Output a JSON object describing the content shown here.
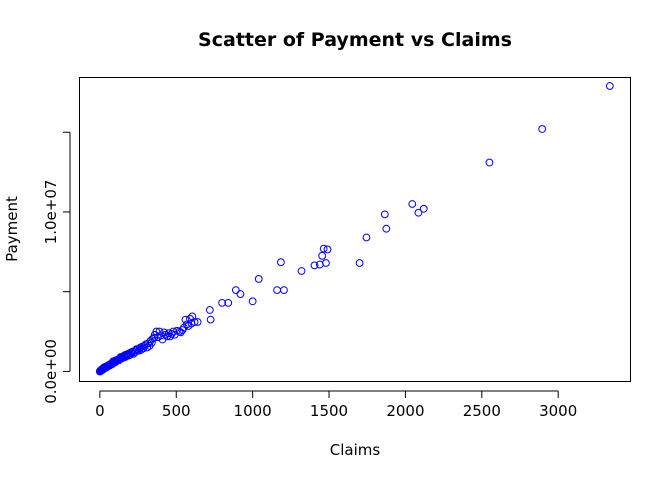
{
  "chart_data": {
    "type": "scatter",
    "title": "Scatter of Payment vs Claims",
    "xlabel": "Claims",
    "ylabel": "Payment",
    "xlim": [
      -130,
      3470
    ],
    "ylim": [
      -600000,
      18400000
    ],
    "x_ticks": [
      0,
      500,
      1000,
      1500,
      2000,
      2500,
      3000
    ],
    "x_tick_labels": [
      "0",
      "500",
      "1000",
      "1500",
      "2000",
      "2500",
      "3000"
    ],
    "y_ticks": [
      0,
      5000000,
      10000000,
      15000000
    ],
    "y_tick_labels": [
      "0.0e+00",
      "",
      "1.0e+07",
      ""
    ],
    "grid": false,
    "point_color": "#0000ff",
    "series": [
      {
        "name": "Payment vs Claims",
        "points": [
          [
            3338,
            17900000
          ],
          [
            2895,
            15200000
          ],
          [
            2550,
            13100000
          ],
          [
            2045,
            10500000
          ],
          [
            2120,
            10200000
          ],
          [
            2085,
            9950000
          ],
          [
            1865,
            9850000
          ],
          [
            1875,
            8950000
          ],
          [
            1745,
            8400000
          ],
          [
            1490,
            7650000
          ],
          [
            1465,
            7700000
          ],
          [
            1455,
            7250000
          ],
          [
            1480,
            6800000
          ],
          [
            1440,
            6700000
          ],
          [
            1405,
            6650000
          ],
          [
            1700,
            6800000
          ],
          [
            1320,
            6300000
          ],
          [
            1185,
            6850000
          ],
          [
            1040,
            5800000
          ],
          [
            890,
            5100000
          ],
          [
            920,
            4850000
          ],
          [
            1160,
            5100000
          ],
          [
            1205,
            5100000
          ],
          [
            1000,
            4400000
          ],
          [
            840,
            4300000
          ],
          [
            800,
            4300000
          ],
          [
            720,
            3850000
          ],
          [
            725,
            3250000
          ],
          [
            640,
            3100000
          ],
          [
            605,
            3450000
          ],
          [
            590,
            3300000
          ],
          [
            560,
            3250000
          ],
          [
            600,
            3000000
          ],
          [
            580,
            2850000
          ],
          [
            540,
            2600000
          ],
          [
            520,
            2500000
          ],
          [
            480,
            2500000
          ],
          [
            470,
            2350000
          ],
          [
            440,
            2200000
          ],
          [
            420,
            2450000
          ],
          [
            400,
            2250000
          ],
          [
            390,
            2500000
          ],
          [
            370,
            2500000
          ],
          [
            355,
            2100000
          ],
          [
            340,
            1800000
          ],
          [
            325,
            1600000
          ],
          [
            310,
            1500000
          ],
          [
            300,
            1700000
          ],
          [
            285,
            1450000
          ],
          [
            270,
            1350000
          ],
          [
            265,
            1500000
          ],
          [
            255,
            1300000
          ],
          [
            240,
            1400000
          ],
          [
            230,
            1200000
          ],
          [
            220,
            1100000
          ],
          [
            210,
            1150000
          ],
          [
            200,
            1050000
          ],
          [
            190,
            1000000
          ],
          [
            185,
            1100000
          ],
          [
            175,
            950000
          ],
          [
            165,
            900000
          ],
          [
            160,
            1000000
          ],
          [
            150,
            850000
          ],
          [
            140,
            800000
          ],
          [
            135,
            900000
          ],
          [
            125,
            700000
          ],
          [
            120,
            750000
          ],
          [
            110,
            650000
          ],
          [
            105,
            700000
          ],
          [
            100,
            600000
          ],
          [
            95,
            550000
          ],
          [
            90,
            600000
          ],
          [
            85,
            500000
          ],
          [
            80,
            450000
          ],
          [
            75,
            500000
          ],
          [
            70,
            400000
          ],
          [
            65,
            380000
          ],
          [
            60,
            420000
          ],
          [
            55,
            330000
          ],
          [
            50,
            300000
          ],
          [
            45,
            320000
          ],
          [
            42,
            250000
          ],
          [
            38,
            230000
          ],
          [
            35,
            260000
          ],
          [
            32,
            200000
          ],
          [
            28,
            180000
          ],
          [
            26,
            210000
          ],
          [
            24,
            150000
          ],
          [
            21,
            130000
          ],
          [
            19,
            140000
          ],
          [
            16,
            100000
          ],
          [
            14,
            90000
          ],
          [
            12,
            80000
          ],
          [
            10,
            60000
          ],
          [
            8,
            50000
          ],
          [
            6,
            40000
          ],
          [
            5,
            30000
          ],
          [
            4,
            25000
          ],
          [
            3,
            15000
          ],
          [
            2,
            10000
          ],
          [
            1,
            5000
          ],
          [
            0,
            0
          ],
          [
            3,
            60000
          ],
          [
            7,
            70000
          ],
          [
            15,
            150000
          ],
          [
            20,
            200000
          ],
          [
            30,
            270000
          ],
          [
            40,
            310000
          ],
          [
            58,
            380000
          ],
          [
            68,
            460000
          ],
          [
            78,
            520000
          ],
          [
            88,
            640000
          ],
          [
            98,
            560000
          ],
          [
            115,
            720000
          ],
          [
            130,
            820000
          ],
          [
            145,
            900000
          ],
          [
            155,
            940000
          ],
          [
            170,
            1050000
          ],
          [
            180,
            1020000
          ],
          [
            195,
            1150000
          ],
          [
            205,
            1200000
          ],
          [
            215,
            1250000
          ],
          [
            235,
            1320000
          ],
          [
            245,
            1380000
          ],
          [
            260,
            1420000
          ],
          [
            275,
            1550000
          ],
          [
            290,
            1600000
          ],
          [
            315,
            1750000
          ],
          [
            330,
            1900000
          ],
          [
            345,
            2050000
          ],
          [
            360,
            2300000
          ],
          [
            380,
            2150000
          ],
          [
            410,
            2000000
          ],
          [
            430,
            2300000
          ],
          [
            450,
            2400000
          ],
          [
            460,
            2200000
          ],
          [
            490,
            2300000
          ],
          [
            505,
            2550000
          ],
          [
            530,
            2450000
          ],
          [
            550,
            2750000
          ],
          [
            570,
            2950000
          ],
          [
            620,
            3100000
          ]
        ]
      }
    ]
  }
}
